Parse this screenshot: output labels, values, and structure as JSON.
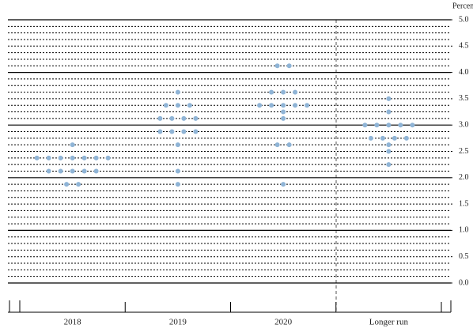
{
  "chart_data": {
    "type": "dot",
    "y_label": "Percent",
    "categories": [
      "2018",
      "2019",
      "2020",
      "Longer run"
    ],
    "values": [
      [
        2.625,
        2.375,
        2.375,
        2.375,
        2.375,
        2.375,
        2.375,
        2.375,
        2.125,
        2.125,
        2.125,
        2.125,
        2.125,
        1.875,
        1.875
      ],
      [
        3.625,
        3.375,
        3.375,
        3.375,
        3.125,
        3.125,
        3.125,
        3.125,
        2.875,
        2.875,
        2.875,
        2.875,
        2.625,
        2.125,
        1.875
      ],
      [
        4.125,
        4.125,
        3.625,
        3.625,
        3.625,
        3.375,
        3.375,
        3.375,
        3.375,
        3.375,
        3.25,
        3.125,
        2.625,
        2.625,
        1.875
      ],
      [
        3.5,
        3.25,
        3.0,
        3.0,
        3.0,
        3.0,
        3.0,
        2.75,
        2.75,
        2.75,
        2.75,
        2.625,
        2.5,
        2.25
      ]
    ],
    "color": "#8fb4d6",
    "ylim": [
      0,
      5
    ],
    "yticks": [
      {
        "value": 0,
        "label": "0.0"
      },
      {
        "value": 0.5,
        "label": "0.5"
      },
      {
        "value": 1,
        "label": "1.0"
      },
      {
        "value": 1.5,
        "label": "1.5"
      },
      {
        "value": 2,
        "label": "2.0"
      },
      {
        "value": 2.5,
        "label": "2.5"
      },
      {
        "value": 3,
        "label": "3.0"
      },
      {
        "value": 3.5,
        "label": "3.5"
      },
      {
        "value": 4,
        "label": "4.0"
      },
      {
        "value": 4.5,
        "label": "4.5"
      },
      {
        "value": 5,
        "label": "5.0"
      }
    ],
    "grid_step": 0.125
  }
}
